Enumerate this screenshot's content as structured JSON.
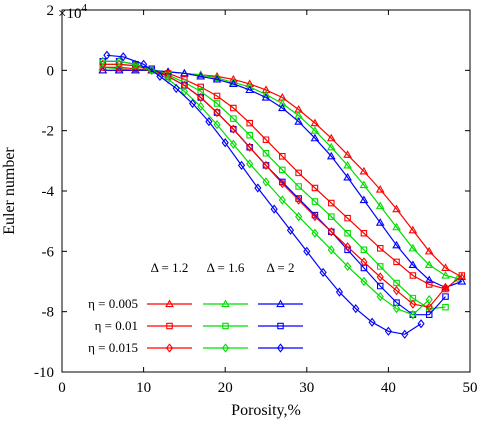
{
  "chart_data": {
    "type": "line",
    "xlabel": "Porosity,%",
    "ylabel": "Euler number",
    "y_multiplier_label": "×10",
    "y_multiplier_exp": "4",
    "xlim": [
      0,
      50
    ],
    "ylim": [
      -10,
      2
    ],
    "x_ticks": [
      "0",
      "10",
      "20",
      "30",
      "40",
      "50"
    ],
    "y_ticks": [
      "2",
      "0",
      "-2",
      "-4",
      "-6",
      "-8",
      "-10"
    ],
    "grid": false,
    "legend": {
      "position": "bottom-left",
      "column_headers": [
        "Δ = 1.2",
        "Δ = 1.6",
        "Δ = 2"
      ],
      "row_labels": [
        "η = 0.005",
        "η = 0.01",
        "η = 0.015"
      ],
      "colors": [
        "#ff0000",
        "#00dd00",
        "#0000ff"
      ],
      "markers": [
        "triangle",
        "square",
        "diamond"
      ]
    },
    "series": [
      {
        "name": "η = 0.005, Δ = 1.2",
        "color": "#ff0000",
        "marker": "triangle",
        "x": [
          5,
          7,
          9,
          11,
          13,
          15,
          17,
          19,
          21,
          23,
          25,
          27,
          29,
          31,
          33,
          35,
          37,
          39,
          41,
          43,
          45,
          47,
          49
        ],
        "y": [
          0,
          0,
          0,
          0,
          -0.05,
          -0.1,
          -0.15,
          -0.2,
          -0.3,
          -0.45,
          -0.65,
          -0.9,
          -1.3,
          -1.75,
          -2.25,
          -2.8,
          -3.35,
          -3.95,
          -4.6,
          -5.3,
          -6,
          -6.55,
          -6.85
        ]
      },
      {
        "name": "η = 0.005, Δ = 1.6",
        "color": "#00dd00",
        "marker": "triangle",
        "x": [
          5,
          7,
          9,
          11,
          13,
          15,
          17,
          19,
          21,
          23,
          25,
          27,
          29,
          31,
          33,
          35,
          37,
          39,
          41,
          43,
          45,
          47,
          48.5
        ],
        "y": [
          0.1,
          0.05,
          0,
          0,
          -0.05,
          -0.1,
          -0.15,
          -0.25,
          -0.4,
          -0.55,
          -0.8,
          -1.1,
          -1.5,
          -2,
          -2.55,
          -3.15,
          -3.8,
          -4.5,
          -5.2,
          -5.9,
          -6.45,
          -6.8,
          -6.9
        ]
      },
      {
        "name": "η = 0.005, Δ = 2",
        "color": "#0000ff",
        "marker": "triangle",
        "x": [
          5,
          7,
          9,
          11,
          13,
          15,
          17,
          19,
          21,
          23,
          25,
          27,
          29,
          31,
          33,
          35,
          37,
          39,
          41,
          43,
          45,
          47,
          49
        ],
        "y": [
          0,
          0,
          0,
          0,
          -0.05,
          -0.1,
          -0.2,
          -0.3,
          -0.45,
          -0.65,
          -0.9,
          -1.25,
          -1.7,
          -2.25,
          -2.85,
          -3.55,
          -4.3,
          -5.05,
          -5.8,
          -6.45,
          -6.95,
          -7.2,
          -7
        ]
      },
      {
        "name": "η = 0.01, Δ = 1.2",
        "color": "#ff0000",
        "marker": "square",
        "x": [
          5,
          7,
          9,
          11,
          13,
          15,
          17,
          19,
          21,
          23,
          25,
          27,
          29,
          31,
          33,
          35,
          37,
          39,
          41,
          43,
          45,
          47,
          49
        ],
        "y": [
          0.1,
          0.1,
          0.05,
          0,
          -0.1,
          -0.3,
          -0.55,
          -0.85,
          -1.25,
          -1.75,
          -2.3,
          -2.85,
          -3.4,
          -3.9,
          -4.4,
          -4.9,
          -5.4,
          -5.9,
          -6.35,
          -6.8,
          -7.1,
          -7.25,
          -6.8
        ]
      },
      {
        "name": "η = 0.01, Δ = 1.6",
        "color": "#00dd00",
        "marker": "square",
        "x": [
          5,
          7,
          9,
          11,
          13,
          15,
          17,
          19,
          21,
          23,
          25,
          27,
          29,
          31,
          33,
          35,
          37,
          39,
          41,
          43,
          45,
          47
        ],
        "y": [
          0.2,
          0.2,
          0.15,
          0.05,
          -0.15,
          -0.4,
          -0.7,
          -1.1,
          -1.6,
          -2.15,
          -2.75,
          -3.3,
          -3.85,
          -4.35,
          -4.85,
          -5.4,
          -5.95,
          -6.5,
          -7.05,
          -7.55,
          -7.9,
          -7.85
        ]
      },
      {
        "name": "η = 0.01, Δ = 2",
        "color": "#0000ff",
        "marker": "square",
        "x": [
          5,
          7,
          9,
          11,
          13,
          15,
          17,
          19,
          21,
          23,
          25,
          27,
          29,
          31,
          33,
          35,
          37,
          39,
          41,
          43,
          45,
          47
        ],
        "y": [
          0.3,
          0.3,
          0.2,
          0.05,
          -0.2,
          -0.5,
          -0.9,
          -1.4,
          -1.95,
          -2.55,
          -3.15,
          -3.7,
          -4.25,
          -4.8,
          -5.35,
          -5.95,
          -6.55,
          -7.15,
          -7.7,
          -8.1,
          -8.1,
          -7.5
        ]
      },
      {
        "name": "η = 0.015, Δ = 1.2",
        "color": "#ff0000",
        "marker": "diamond",
        "x": [
          5,
          7,
          9,
          11,
          13,
          15,
          17,
          19,
          21,
          23,
          25,
          27,
          29,
          31,
          33,
          35,
          37,
          39,
          41,
          43,
          45,
          47
        ],
        "y": [
          0.2,
          0.2,
          0.15,
          0,
          -0.2,
          -0.5,
          -0.9,
          -1.4,
          -1.95,
          -2.55,
          -3.15,
          -3.75,
          -4.3,
          -4.85,
          -5.35,
          -5.85,
          -6.35,
          -6.85,
          -7.3,
          -7.75,
          -7.85,
          -7.2
        ]
      },
      {
        "name": "η = 0.015, Δ = 1.6",
        "color": "#00dd00",
        "marker": "diamond",
        "x": [
          5,
          7,
          9,
          11,
          13,
          15,
          17,
          19,
          21,
          23,
          25,
          27,
          29,
          31,
          33,
          35,
          37,
          39,
          41,
          43,
          45
        ],
        "y": [
          0.3,
          0.3,
          0.2,
          0,
          -0.3,
          -0.7,
          -1.2,
          -1.8,
          -2.45,
          -3.1,
          -3.7,
          -4.3,
          -4.85,
          -5.4,
          -5.95,
          -6.5,
          -7,
          -7.5,
          -7.9,
          -8.1,
          -7.6
        ]
      },
      {
        "name": "η = 0.015, Δ = 2",
        "color": "#0000ff",
        "marker": "diamond",
        "x": [
          5.5,
          7.5,
          10,
          12,
          14,
          16,
          18,
          20,
          22,
          24,
          26,
          28,
          30,
          32,
          34,
          36,
          38,
          40,
          42,
          44
        ],
        "y": [
          0.5,
          0.45,
          0.2,
          -0.2,
          -0.6,
          -1.1,
          -1.7,
          -2.4,
          -3.15,
          -3.9,
          -4.6,
          -5.3,
          -6,
          -6.7,
          -7.35,
          -7.9,
          -8.35,
          -8.65,
          -8.75,
          -8.4
        ]
      }
    ]
  }
}
